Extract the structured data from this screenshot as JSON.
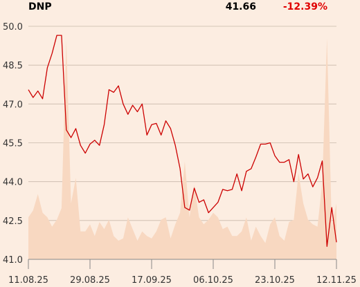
{
  "header": {
    "ticker": "DNP",
    "price": "41.66",
    "change": "-12.39%"
  },
  "colors": {
    "background": "#fcede1",
    "line": "#cc0000",
    "volume_area": "#f8d8c1",
    "grid": "#c8b8aa",
    "change_negative": "#e00000"
  },
  "chart_data": {
    "type": "line",
    "title": "DNP",
    "x_tick_labels": [
      "11.08.25",
      "29.08.25",
      "17.09.25",
      "06.10.25",
      "23.10.25",
      "12.11.25"
    ],
    "y_tick_labels": [
      "50.0",
      "48.5",
      "47.0",
      "45.5",
      "44.0",
      "42.5",
      "41.0"
    ],
    "ylim": [
      41.0,
      50.0
    ],
    "grid": "horizontal",
    "series": [
      {
        "role": "price",
        "values": [
          47.55,
          47.25,
          47.5,
          47.2,
          48.4,
          48.95,
          49.65,
          49.65,
          46.0,
          45.7,
          46.05,
          45.4,
          45.1,
          45.45,
          45.6,
          45.4,
          46.2,
          47.55,
          47.45,
          47.7,
          47.0,
          46.6,
          46.95,
          46.7,
          47.0,
          45.8,
          46.2,
          46.25,
          45.8,
          46.35,
          46.05,
          45.4,
          44.5,
          43.0,
          42.9,
          43.75,
          43.2,
          43.3,
          42.8,
          43.0,
          43.2,
          43.7,
          43.65,
          43.7,
          44.3,
          43.65,
          44.4,
          44.5,
          44.95,
          45.45,
          45.45,
          45.5,
          45.0,
          44.75,
          44.75,
          44.85,
          44.0,
          45.05,
          44.1,
          44.3,
          43.8,
          44.15,
          44.8,
          41.5,
          43.0,
          41.66
        ]
      },
      {
        "role": "volume",
        "values": [
          0.18,
          0.21,
          0.28,
          0.2,
          0.18,
          0.14,
          0.17,
          0.22,
          0.94,
          0.24,
          0.35,
          0.12,
          0.12,
          0.15,
          0.1,
          0.16,
          0.13,
          0.17,
          0.1,
          0.08,
          0.09,
          0.18,
          0.13,
          0.08,
          0.12,
          0.1,
          0.09,
          0.12,
          0.17,
          0.18,
          0.09,
          0.15,
          0.2,
          0.42,
          0.18,
          0.32,
          0.18,
          0.15,
          0.17,
          0.2,
          0.18,
          0.13,
          0.14,
          0.1,
          0.1,
          0.12,
          0.18,
          0.08,
          0.14,
          0.1,
          0.07,
          0.15,
          0.18,
          0.1,
          0.08,
          0.16,
          0.17,
          0.37,
          0.24,
          0.17,
          0.15,
          0.14,
          0.33,
          0.95,
          0.14,
          0.24
        ]
      }
    ]
  }
}
